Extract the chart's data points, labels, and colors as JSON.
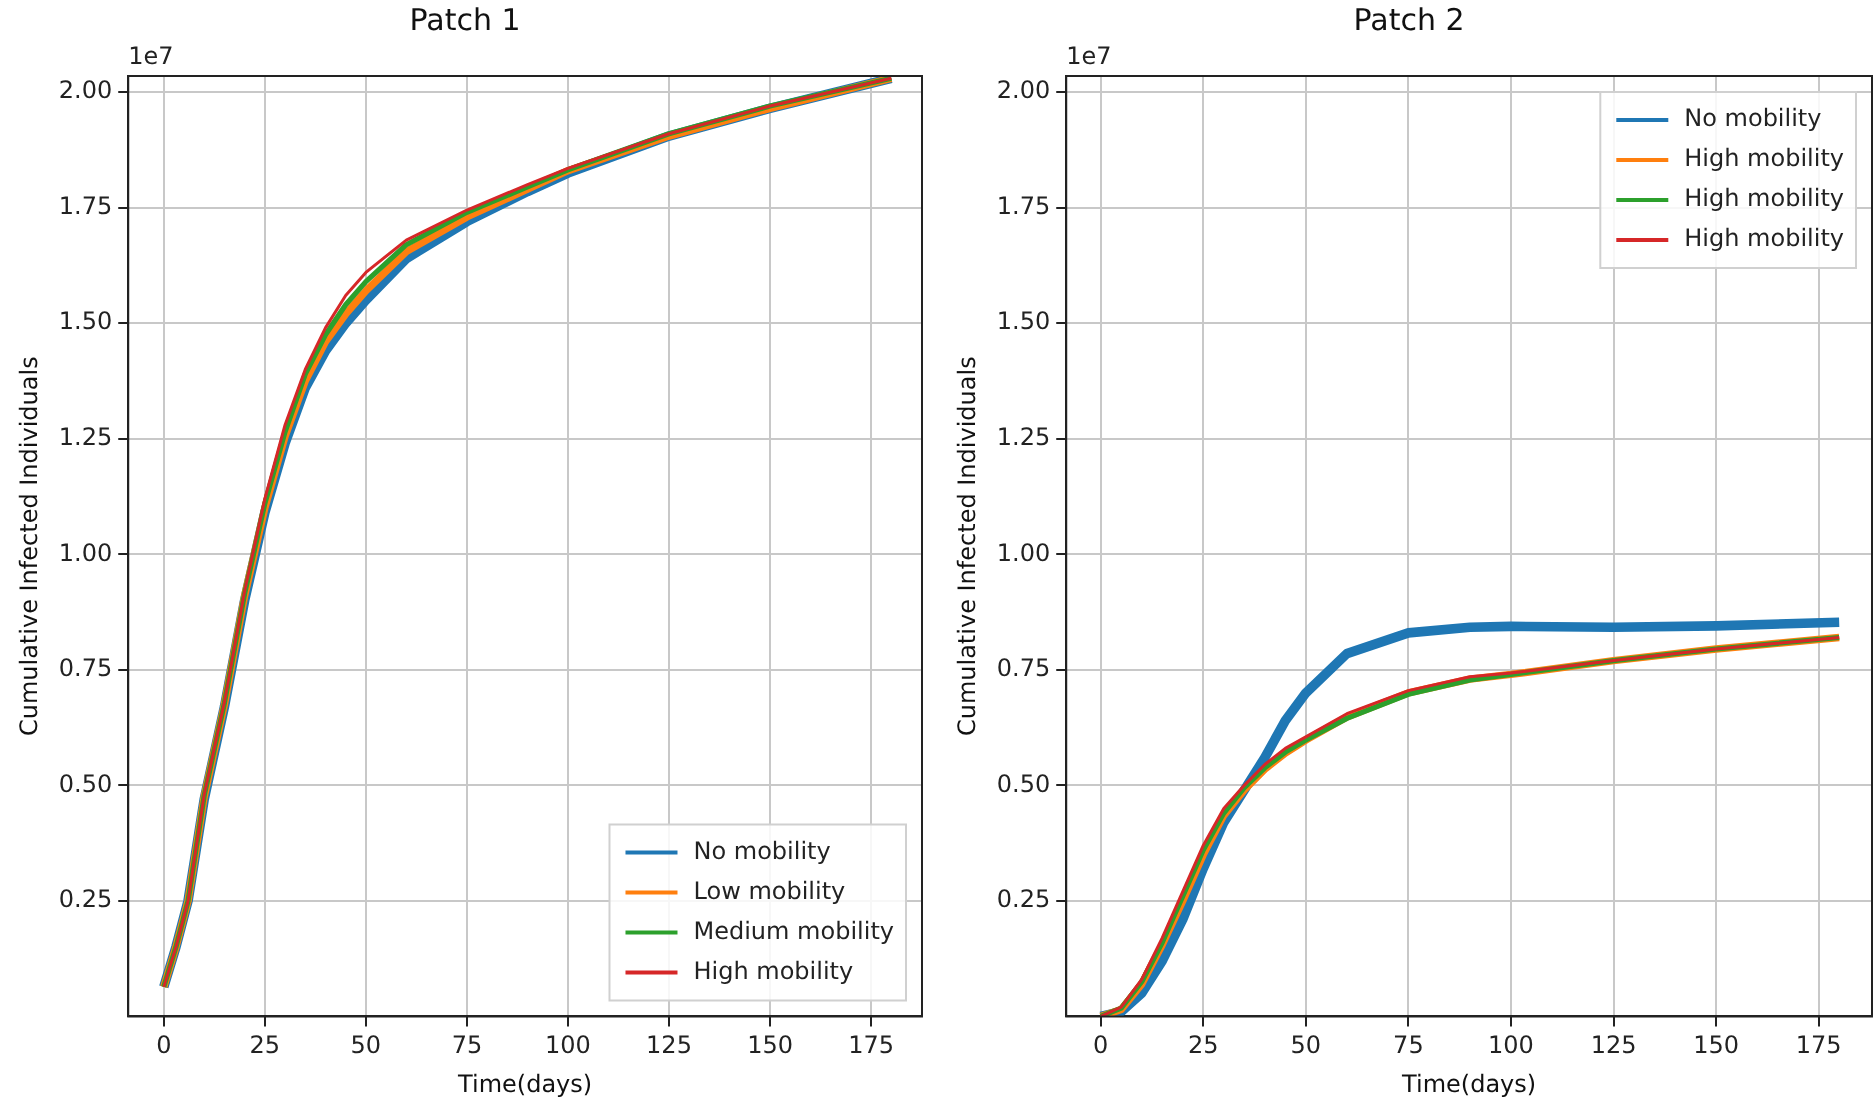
{
  "chart_data": [
    {
      "type": "line",
      "title": "Patch 1",
      "xlabel": "Time(days)",
      "ylabel": "Cumulative Infected Individuals",
      "annotations": [
        "1e7"
      ],
      "x": [
        0,
        3,
        6,
        10,
        15,
        20,
        25,
        30,
        35,
        40,
        45,
        50,
        60,
        75,
        90,
        100,
        125,
        150,
        180
      ],
      "series": [
        {
          "name": "No mobility",
          "color": "#1f77b4",
          "values": [
            0.064,
            0.15,
            0.25,
            0.47,
            0.67,
            0.9,
            1.09,
            1.24,
            1.36,
            1.44,
            1.5,
            1.55,
            1.64,
            1.72,
            1.785,
            1.825,
            1.905,
            1.965,
            2.03
          ]
        },
        {
          "name": "Low mobility",
          "color": "#ff7f0e",
          "values": [
            0.064,
            0.15,
            0.25,
            0.475,
            0.675,
            0.91,
            1.1,
            1.255,
            1.375,
            1.46,
            1.52,
            1.57,
            1.655,
            1.73,
            1.79,
            1.83,
            1.905,
            1.965,
            2.03
          ]
        },
        {
          "name": "Medium mobility",
          "color": "#2ca02c",
          "values": [
            0.064,
            0.15,
            0.25,
            0.478,
            0.678,
            0.915,
            1.11,
            1.265,
            1.39,
            1.475,
            1.54,
            1.59,
            1.67,
            1.74,
            1.795,
            1.832,
            1.91,
            1.97,
            2.03
          ]
        },
        {
          "name": "High mobility",
          "color": "#d62728",
          "values": [
            0.064,
            0.15,
            0.25,
            0.48,
            0.68,
            0.92,
            1.12,
            1.28,
            1.4,
            1.49,
            1.56,
            1.61,
            1.68,
            1.745,
            1.8,
            1.835,
            1.91,
            1.97,
            2.03
          ]
        }
      ],
      "xlim": [
        -8.8,
        187.6
      ],
      "xticks": [
        0,
        25,
        50,
        75,
        100,
        125,
        150,
        175
      ],
      "ylim": [
        0,
        2.035
      ],
      "yticks": [
        0.25,
        {
          "value": 0.5,
          "label": "0.50"
        },
        0.75,
        {
          "value": 1,
          "label": "1.00"
        },
        1.25,
        {
          "value": 1.5,
          "label": "1.50"
        },
        1.75,
        {
          "value": 2,
          "label": "2.00"
        }
      ],
      "grid": true,
      "legend": "bottom right",
      "line_style": "solid",
      "marker": "none"
    },
    {
      "type": "line",
      "title": "Patch 2",
      "xlabel": "Time(days)",
      "ylabel": "Cumulative Infected Individuals",
      "annotations": [
        "1e7"
      ],
      "x": [
        0,
        5,
        10,
        15,
        20,
        25,
        30,
        35,
        40,
        45,
        50,
        60,
        75,
        90,
        100,
        125,
        150,
        180
      ],
      "series": [
        {
          "name": "No mobility",
          "color": "#1f77b4",
          "values": [
            0,
            0.01,
            0.05,
            0.12,
            0.21,
            0.32,
            0.42,
            0.49,
            0.56,
            0.64,
            0.7,
            0.785,
            0.83,
            0.842,
            0.844,
            0.842,
            0.845,
            0.853
          ]
        },
        {
          "name": "High mobility",
          "color": "#ff7f0e",
          "values": [
            0,
            0.015,
            0.07,
            0.155,
            0.25,
            0.35,
            0.435,
            0.49,
            0.535,
            0.57,
            0.598,
            0.648,
            0.7,
            0.73,
            0.74,
            0.77,
            0.795,
            0.82
          ]
        },
        {
          "name": "High mobility",
          "color": "#2ca02c",
          "values": [
            0,
            0.018,
            0.075,
            0.16,
            0.26,
            0.36,
            0.44,
            0.495,
            0.538,
            0.572,
            0.598,
            0.645,
            0.697,
            0.728,
            0.74,
            0.77,
            0.795,
            0.82
          ]
        },
        {
          "name": "High mobility",
          "color": "#d62728",
          "values": [
            0,
            0.02,
            0.08,
            0.17,
            0.27,
            0.37,
            0.45,
            0.5,
            0.545,
            0.58,
            0.605,
            0.655,
            0.705,
            0.735,
            0.743,
            0.77,
            0.795,
            0.82
          ]
        }
      ],
      "xlim": [
        -8.4,
        188
      ],
      "xticks": [
        0,
        25,
        50,
        75,
        100,
        125,
        150,
        175
      ],
      "ylim": [
        0,
        2.035
      ],
      "yticks": [
        0.25,
        {
          "value": 0.5,
          "label": "0.50"
        },
        0.75,
        {
          "value": 1,
          "label": "1.00"
        },
        1.25,
        {
          "value": 1.5,
          "label": "1.50"
        },
        1.75,
        {
          "value": 2,
          "label": "2.00"
        }
      ],
      "grid": true,
      "legend": "top right",
      "line_style": "solid",
      "marker": "none"
    }
  ]
}
